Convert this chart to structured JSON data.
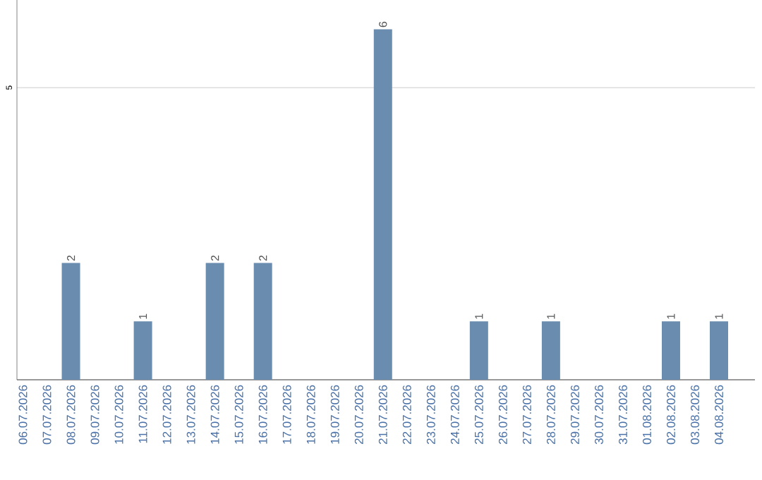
{
  "chart_data": {
    "type": "bar",
    "categories": [
      "06.07.2026",
      "07.07.2026",
      "08.07.2026",
      "09.07.2026",
      "10.07.2026",
      "11.07.2026",
      "12.07.2026",
      "13.07.2026",
      "14.07.2026",
      "15.07.2026",
      "16.07.2026",
      "17.07.2026",
      "18.07.2026",
      "19.07.2026",
      "20.07.2026",
      "21.07.2026",
      "22.07.2026",
      "23.07.2026",
      "24.07.2026",
      "25.07.2026",
      "26.07.2026",
      "27.07.2026",
      "28.07.2026",
      "29.07.2026",
      "30.07.2026",
      "31.07.2026",
      "01.08.2026",
      "02.08.2026",
      "03.08.2026",
      "04.08.2026"
    ],
    "values": [
      0,
      0,
      2,
      0,
      0,
      1,
      0,
      0,
      2,
      0,
      2,
      0,
      0,
      0,
      0,
      6,
      0,
      0,
      0,
      1,
      0,
      0,
      1,
      0,
      0,
      0,
      0,
      1,
      0,
      1
    ],
    "value_labels": [
      null,
      null,
      "2",
      null,
      null,
      "1",
      null,
      null,
      "2",
      null,
      "2",
      null,
      null,
      null,
      null,
      "6",
      null,
      null,
      null,
      "1",
      null,
      null,
      "1",
      null,
      null,
      null,
      null,
      "1",
      null,
      "1"
    ],
    "color": "#6a8caf",
    "ylim": [
      0,
      6.5
    ],
    "yticks": [
      5
    ],
    "grid": "y"
  }
}
